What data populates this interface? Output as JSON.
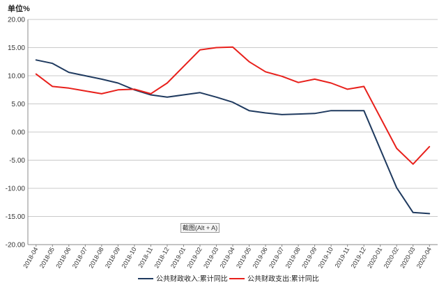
{
  "chart_data": {
    "type": "line",
    "ylabel": "单位%",
    "ylim": [
      -20,
      20
    ],
    "yticks": [
      "20.00",
      "15.00",
      "10.00",
      "5.00",
      "0.00",
      "-5.00",
      "-10.00",
      "-15.00",
      "-20.00"
    ],
    "ytick_values": [
      20,
      15,
      10,
      5,
      0,
      -5,
      -10,
      -15,
      -20
    ],
    "grid": "horizontal",
    "legend_position": "bottom",
    "categories": [
      "2018-04",
      "2018-05",
      "2018-06",
      "2018-07",
      "2018-08",
      "2018-09",
      "2018-10",
      "2018-11",
      "2018-12",
      "2019-01",
      "2019-02",
      "2019-03",
      "2019-04",
      "2019-05",
      "2019-06",
      "2019-07",
      "2019-08",
      "2019-09",
      "2019-10",
      "2019-11",
      "2019-12",
      "2020-01",
      "2020-02",
      "2020-03",
      "2020-04"
    ],
    "series": [
      {
        "name": "公共财政收入:累计同比",
        "color": "#1f3a5f",
        "values": [
          12.8,
          12.2,
          10.6,
          10.0,
          9.4,
          8.7,
          7.5,
          6.6,
          6.2,
          6.6,
          7.0,
          6.2,
          5.3,
          3.8,
          3.4,
          3.1,
          3.2,
          3.3,
          3.8,
          3.8,
          3.8,
          null,
          -9.9,
          -14.3,
          -14.5
        ]
      },
      {
        "name": "公共财政支出:累计同比",
        "color": "#e8201b",
        "values": [
          10.3,
          8.1,
          7.8,
          7.3,
          6.8,
          7.5,
          7.6,
          6.8,
          8.7,
          null,
          14.6,
          15.0,
          15.1,
          12.5,
          10.7,
          9.9,
          8.8,
          9.4,
          8.7,
          7.6,
          8.1,
          null,
          -2.9,
          -5.7,
          -2.6
        ]
      }
    ]
  },
  "tooltip": {
    "label": "截图(Alt + A)"
  }
}
